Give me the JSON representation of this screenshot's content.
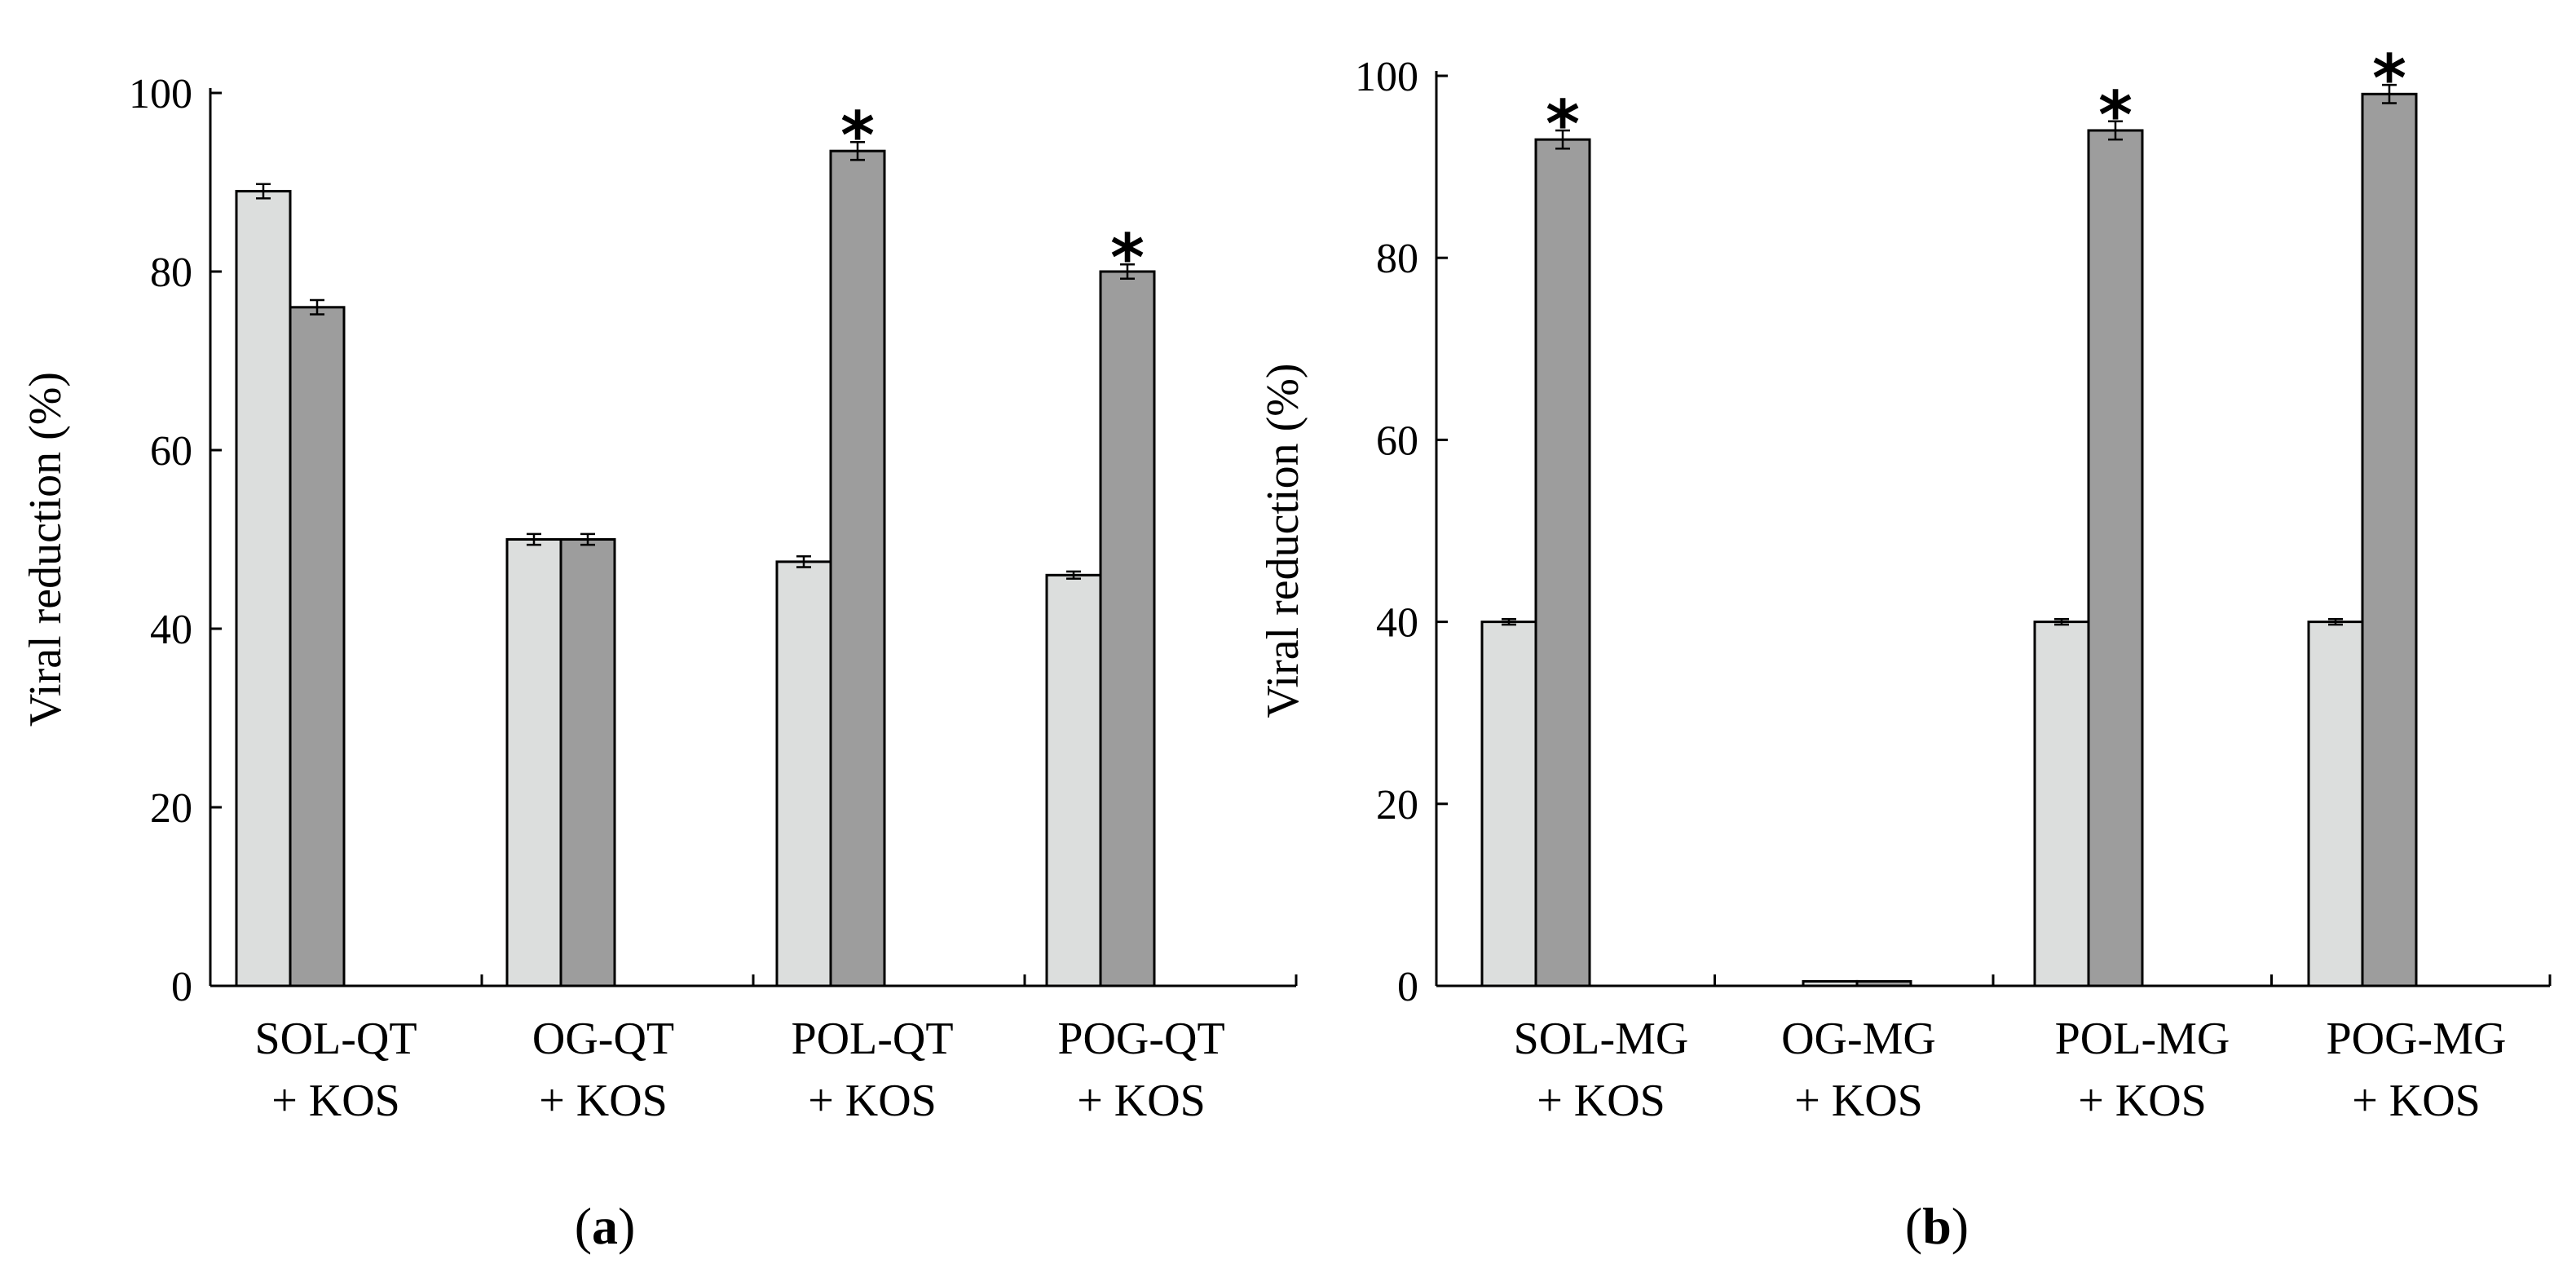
{
  "colors": {
    "series_light": "#dcdedd",
    "series_dark": "#9d9d9d",
    "axis": "#000000"
  },
  "chart_data": [
    {
      "type": "bar",
      "panel_label": "a",
      "ylabel": "Viral reduction (%)",
      "ylim": [
        0,
        100
      ],
      "yticks": [
        0,
        20,
        40,
        60,
        80,
        100
      ],
      "categories": [
        [
          "SOL-QT",
          "+ KOS"
        ],
        [
          "OG-QT",
          "+ KOS"
        ],
        [
          "POL-QT",
          "+ KOS"
        ],
        [
          "POG-QT",
          "+ KOS"
        ]
      ],
      "series": [
        {
          "name": "light",
          "values": [
            89,
            50,
            47.5,
            46
          ],
          "errors": [
            0.8,
            0.6,
            0.6,
            0.4
          ]
        },
        {
          "name": "dark",
          "values": [
            76,
            50,
            93.5,
            80
          ],
          "errors": [
            0.8,
            0.6,
            1.0,
            0.8
          ]
        }
      ],
      "significance": [
        "",
        "",
        "*",
        "*"
      ]
    },
    {
      "type": "bar",
      "panel_label": "b",
      "ylabel": "Viral reduction (%)",
      "ylim": [
        0,
        100
      ],
      "yticks": [
        0,
        20,
        40,
        60,
        80,
        100
      ],
      "categories": [
        [
          "SOL-MG",
          "+ KOS"
        ],
        [
          "OG-MG",
          "+ KOS"
        ],
        [
          "POL-MG",
          "+ KOS"
        ],
        [
          "POG-MG",
          "+ KOS"
        ]
      ],
      "series": [
        {
          "name": "light",
          "values": [
            40,
            0.5,
            40,
            40
          ],
          "errors": [
            0.3,
            0,
            0.3,
            0.3
          ]
        },
        {
          "name": "dark",
          "values": [
            93,
            0.5,
            94,
            98
          ],
          "errors": [
            1.0,
            0,
            1.0,
            1.0
          ]
        }
      ],
      "significance": [
        "*",
        "",
        "*",
        "*"
      ]
    }
  ]
}
